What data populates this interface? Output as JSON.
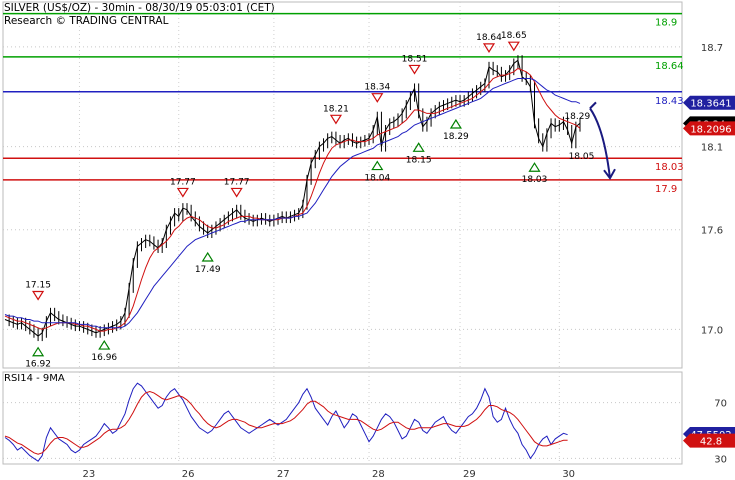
{
  "header": {
    "title": "SILVER (US$/OZ) - 30min - 08/30/19 05:03:01 (CET)",
    "subtitle": "Research © TRADING CENTRAL"
  },
  "chart_data": [
    {
      "type": "line",
      "title": "SILVER (US$/OZ) - 30min",
      "y_ticks": [
        "18.7",
        "18.1",
        "17.6",
        "17.0"
      ],
      "y_tick_values": [
        18.7,
        18.1,
        17.6,
        17.0
      ],
      "ylim": [
        16.78,
        18.97
      ],
      "x_labels": [
        "23",
        "26",
        "27",
        "28",
        "29",
        "30"
      ],
      "levels": [
        {
          "label": "18.9",
          "value": 18.9,
          "color": "#00a000"
        },
        {
          "label": "18.64",
          "value": 18.64,
          "color": "#00a000"
        },
        {
          "label": "18.43",
          "value": 18.43,
          "color": "#2020c0"
        },
        {
          "label": "18.03",
          "value": 18.03,
          "color": "#d01010"
        },
        {
          "label": "17.9",
          "value": 17.9,
          "color": "#d01010"
        }
      ],
      "price_tags": [
        {
          "label": "18.3641",
          "value": 18.3641,
          "bg": "#2020a0",
          "fg": "#ffffff"
        },
        {
          "label": "18.24",
          "value": 18.24,
          "bg": "#000000",
          "fg": "#ffffff"
        },
        {
          "label": "18.2096",
          "value": 18.2096,
          "bg": "#d01010",
          "fg": "#ffffff"
        }
      ],
      "swing_labels": [
        {
          "label": "17.15",
          "kind": "high",
          "i": 8,
          "value": 17.15
        },
        {
          "label": "16.92",
          "kind": "low",
          "i": 8,
          "value": 16.92
        },
        {
          "label": "16.96",
          "kind": "low",
          "i": 24,
          "value": 16.96
        },
        {
          "label": "17.77",
          "kind": "high",
          "i": 43,
          "value": 17.77
        },
        {
          "label": "17.49",
          "kind": "low",
          "i": 49,
          "value": 17.49
        },
        {
          "label": "17.77",
          "kind": "high",
          "i": 56,
          "value": 17.77
        },
        {
          "label": "18.21",
          "kind": "high",
          "i": 80,
          "value": 18.21
        },
        {
          "label": "18.34",
          "kind": "high",
          "i": 90,
          "value": 18.34
        },
        {
          "label": "18.04",
          "kind": "low",
          "i": 90,
          "value": 18.04
        },
        {
          "label": "18.51",
          "kind": "high",
          "i": 99,
          "value": 18.51
        },
        {
          "label": "18.15",
          "kind": "low",
          "i": 100,
          "value": 18.15
        },
        {
          "label": "18.29",
          "kind": "low",
          "i": 109,
          "value": 18.29
        },
        {
          "label": "18.64",
          "kind": "high",
          "i": 117,
          "value": 18.64
        },
        {
          "label": "18.65",
          "kind": "high",
          "i": 123,
          "value": 18.65
        },
        {
          "label": "18.29",
          "kind": "plain",
          "i": 134,
          "value": 18.29
        },
        {
          "label": "18.03",
          "kind": "low",
          "i": 128,
          "value": 18.03
        },
        {
          "label": "18.05",
          "kind": "plain",
          "i": 135,
          "value": 18.05
        }
      ],
      "x_date_index": [
        {
          "label": "23",
          "i": 18
        },
        {
          "label": "26",
          "i": 42
        },
        {
          "label": "27",
          "i": 65
        },
        {
          "label": "28",
          "i": 88
        },
        {
          "label": "29",
          "i": 110
        },
        {
          "label": "30",
          "i": 134
        }
      ],
      "series": [
        {
          "name": "",
          "color": "#000000",
          "values": [
            17.06,
            17.05,
            17.04,
            17.03,
            17.04,
            17.02,
            17.0,
            16.98,
            16.96,
            16.98,
            17.05,
            17.1,
            17.08,
            17.06,
            17.05,
            17.04,
            17.03,
            17.02,
            17.02,
            17.01,
            17.0,
            16.99,
            16.98,
            16.99,
            17.0,
            17.01,
            17.02,
            17.03,
            17.05,
            17.1,
            17.25,
            17.4,
            17.5,
            17.52,
            17.54,
            17.53,
            17.51,
            17.49,
            17.52,
            17.6,
            17.65,
            17.7,
            17.68,
            17.73,
            17.72,
            17.68,
            17.65,
            17.62,
            17.6,
            17.58,
            17.6,
            17.62,
            17.64,
            17.66,
            17.68,
            17.7,
            17.72,
            17.69,
            17.67,
            17.66,
            17.65,
            17.66,
            17.67,
            17.66,
            17.65,
            17.66,
            17.67,
            17.68,
            17.67,
            17.68,
            17.69,
            17.7,
            17.75,
            17.9,
            18.0,
            18.05,
            18.1,
            18.12,
            18.15,
            18.16,
            18.14,
            18.12,
            18.14,
            18.15,
            18.13,
            18.12,
            18.13,
            18.14,
            18.15,
            18.2,
            18.28,
            18.1,
            18.2,
            18.24,
            18.25,
            18.27,
            18.3,
            18.35,
            18.4,
            18.45,
            18.3,
            18.22,
            18.25,
            18.3,
            18.32,
            18.34,
            18.35,
            18.36,
            18.37,
            18.38,
            18.37,
            18.38,
            18.4,
            18.42,
            18.44,
            18.46,
            18.48,
            18.58,
            18.56,
            18.55,
            18.52,
            18.53,
            18.56,
            18.6,
            18.62,
            18.52,
            18.5,
            18.46,
            18.24,
            18.15,
            18.1,
            18.18,
            18.24,
            18.22,
            18.23,
            18.25,
            18.2,
            18.12,
            18.22,
            18.24
          ]
        },
        {
          "name": "",
          "color": "#d01010",
          "values": [
            17.08,
            17.07,
            17.06,
            17.05,
            17.05,
            17.04,
            17.03,
            17.02,
            17.01,
            17.0,
            17.01,
            17.02,
            17.03,
            17.04,
            17.04,
            17.04,
            17.04,
            17.03,
            17.03,
            17.02,
            17.02,
            17.01,
            17.0,
            16.99,
            16.99,
            17.0,
            17.0,
            17.01,
            17.02,
            17.04,
            17.08,
            17.14,
            17.22,
            17.3,
            17.37,
            17.43,
            17.47,
            17.49,
            17.51,
            17.53,
            17.56,
            17.6,
            17.62,
            17.65,
            17.67,
            17.68,
            17.67,
            17.66,
            17.64,
            17.62,
            17.61,
            17.61,
            17.62,
            17.63,
            17.65,
            17.66,
            17.67,
            17.68,
            17.68,
            17.68,
            17.67,
            17.67,
            17.66,
            17.66,
            17.66,
            17.66,
            17.66,
            17.67,
            17.67,
            17.67,
            17.68,
            17.69,
            17.7,
            17.74,
            17.8,
            17.87,
            17.94,
            18.0,
            18.05,
            18.09,
            18.11,
            18.12,
            18.13,
            18.14,
            18.14,
            18.13,
            18.13,
            18.13,
            18.14,
            18.15,
            18.17,
            18.18,
            18.19,
            18.2,
            18.21,
            18.22,
            18.24,
            18.26,
            18.29,
            18.32,
            18.32,
            18.31,
            18.3,
            18.3,
            18.3,
            18.31,
            18.32,
            18.33,
            18.34,
            18.35,
            18.36,
            18.37,
            18.38,
            18.39,
            18.41,
            18.43,
            18.45,
            18.48,
            18.51,
            18.52,
            18.53,
            18.53,
            18.54,
            18.55,
            18.57,
            18.56,
            18.55,
            18.53,
            18.49,
            18.44,
            18.39,
            18.35,
            18.32,
            18.29,
            18.27,
            18.26,
            18.25,
            18.24,
            18.23,
            18.21
          ]
        },
        {
          "name": "",
          "color": "#2020c0",
          "values": [
            17.09,
            17.08,
            17.08,
            17.07,
            17.07,
            17.06,
            17.06,
            17.05,
            17.05,
            17.04,
            17.04,
            17.04,
            17.04,
            17.04,
            17.04,
            17.04,
            17.04,
            17.04,
            17.03,
            17.03,
            17.03,
            17.02,
            17.02,
            17.01,
            17.01,
            17.01,
            17.01,
            17.01,
            17.01,
            17.02,
            17.04,
            17.07,
            17.1,
            17.14,
            17.18,
            17.22,
            17.26,
            17.29,
            17.32,
            17.35,
            17.38,
            17.41,
            17.44,
            17.47,
            17.5,
            17.52,
            17.54,
            17.55,
            17.56,
            17.57,
            17.58,
            17.59,
            17.6,
            17.61,
            17.62,
            17.63,
            17.64,
            17.65,
            17.65,
            17.66,
            17.66,
            17.66,
            17.66,
            17.66,
            17.66,
            17.66,
            17.67,
            17.67,
            17.67,
            17.67,
            17.68,
            17.68,
            17.69,
            17.7,
            17.73,
            17.76,
            17.8,
            17.84,
            17.88,
            17.92,
            17.95,
            17.98,
            18.0,
            18.02,
            18.04,
            18.05,
            18.06,
            18.07,
            18.08,
            18.09,
            18.11,
            18.12,
            18.13,
            18.14,
            18.15,
            18.16,
            18.18,
            18.19,
            18.21,
            18.23,
            18.24,
            18.25,
            18.26,
            18.27,
            18.28,
            18.29,
            18.3,
            18.31,
            18.32,
            18.33,
            18.34,
            18.35,
            18.36,
            18.37,
            18.38,
            18.39,
            18.41,
            18.43,
            18.45,
            18.46,
            18.47,
            18.48,
            18.49,
            18.5,
            18.51,
            18.51,
            18.51,
            18.51,
            18.5,
            18.48,
            18.46,
            18.44,
            18.43,
            18.41,
            18.4,
            18.39,
            18.38,
            18.37,
            18.37,
            18.36
          ]
        }
      ]
    },
    {
      "type": "line",
      "title": "RSI14 - 9MA",
      "y_ticks": [
        "70",
        "30"
      ],
      "y_tick_values": [
        70,
        30
      ],
      "ylim": [
        26,
        92
      ],
      "price_tags": [
        {
          "label": "47.5502",
          "value": 47.55,
          "bg": "#2020a0",
          "fg": "#ffffff"
        },
        {
          "label": "42.8",
          "value": 42.8,
          "bg": "#d01010",
          "fg": "#ffffff"
        }
      ],
      "series": [
        {
          "name": "RSI14",
          "color": "#2020c0",
          "values": [
            45,
            43,
            40,
            36,
            38,
            35,
            32,
            30,
            28,
            32,
            45,
            52,
            48,
            44,
            42,
            40,
            36,
            34,
            36,
            40,
            42,
            44,
            46,
            50,
            55,
            52,
            48,
            50,
            56,
            62,
            72,
            80,
            84,
            82,
            78,
            74,
            70,
            66,
            68,
            74,
            78,
            80,
            76,
            72,
            66,
            60,
            56,
            52,
            50,
            48,
            50,
            54,
            58,
            62,
            64,
            60,
            56,
            52,
            50,
            48,
            50,
            52,
            54,
            56,
            58,
            56,
            54,
            56,
            58,
            62,
            66,
            70,
            76,
            80,
            74,
            66,
            62,
            58,
            54,
            60,
            64,
            58,
            52,
            56,
            62,
            60,
            54,
            48,
            42,
            46,
            52,
            58,
            62,
            60,
            56,
            50,
            44,
            46,
            52,
            58,
            56,
            50,
            48,
            52,
            56,
            58,
            60,
            54,
            50,
            48,
            52,
            56,
            60,
            62,
            66,
            72,
            80,
            74,
            60,
            56,
            58,
            66,
            58,
            52,
            48,
            40,
            36,
            30,
            34,
            40,
            44,
            46,
            40,
            44,
            46,
            48,
            47
          ]
        },
        {
          "name": "9MA",
          "color": "#d01010",
          "values": [
            46,
            45,
            43,
            41,
            40,
            38,
            36,
            34,
            33,
            34,
            37,
            41,
            44,
            45,
            45,
            44,
            42,
            40,
            38,
            38,
            39,
            41,
            43,
            45,
            48,
            50,
            51,
            51,
            52,
            54,
            58,
            63,
            69,
            74,
            77,
            78,
            77,
            75,
            73,
            72,
            73,
            74,
            75,
            74,
            72,
            69,
            65,
            62,
            58,
            55,
            53,
            52,
            53,
            55,
            57,
            58,
            58,
            57,
            56,
            54,
            53,
            52,
            52,
            53,
            54,
            55,
            55,
            55,
            56,
            57,
            59,
            62,
            65,
            69,
            71,
            71,
            69,
            67,
            64,
            62,
            61,
            60,
            59,
            58,
            58,
            58,
            57,
            55,
            53,
            51,
            50,
            51,
            53,
            55,
            56,
            56,
            54,
            52,
            51,
            51,
            52,
            52,
            52,
            52,
            53,
            54,
            55,
            55,
            54,
            53,
            53,
            53,
            54,
            56,
            58,
            61,
            65,
            68,
            68,
            67,
            65,
            64,
            63,
            61,
            58,
            54,
            50,
            46,
            42,
            40,
            39,
            39,
            40,
            41,
            42,
            43,
            43
          ]
        }
      ]
    }
  ]
}
